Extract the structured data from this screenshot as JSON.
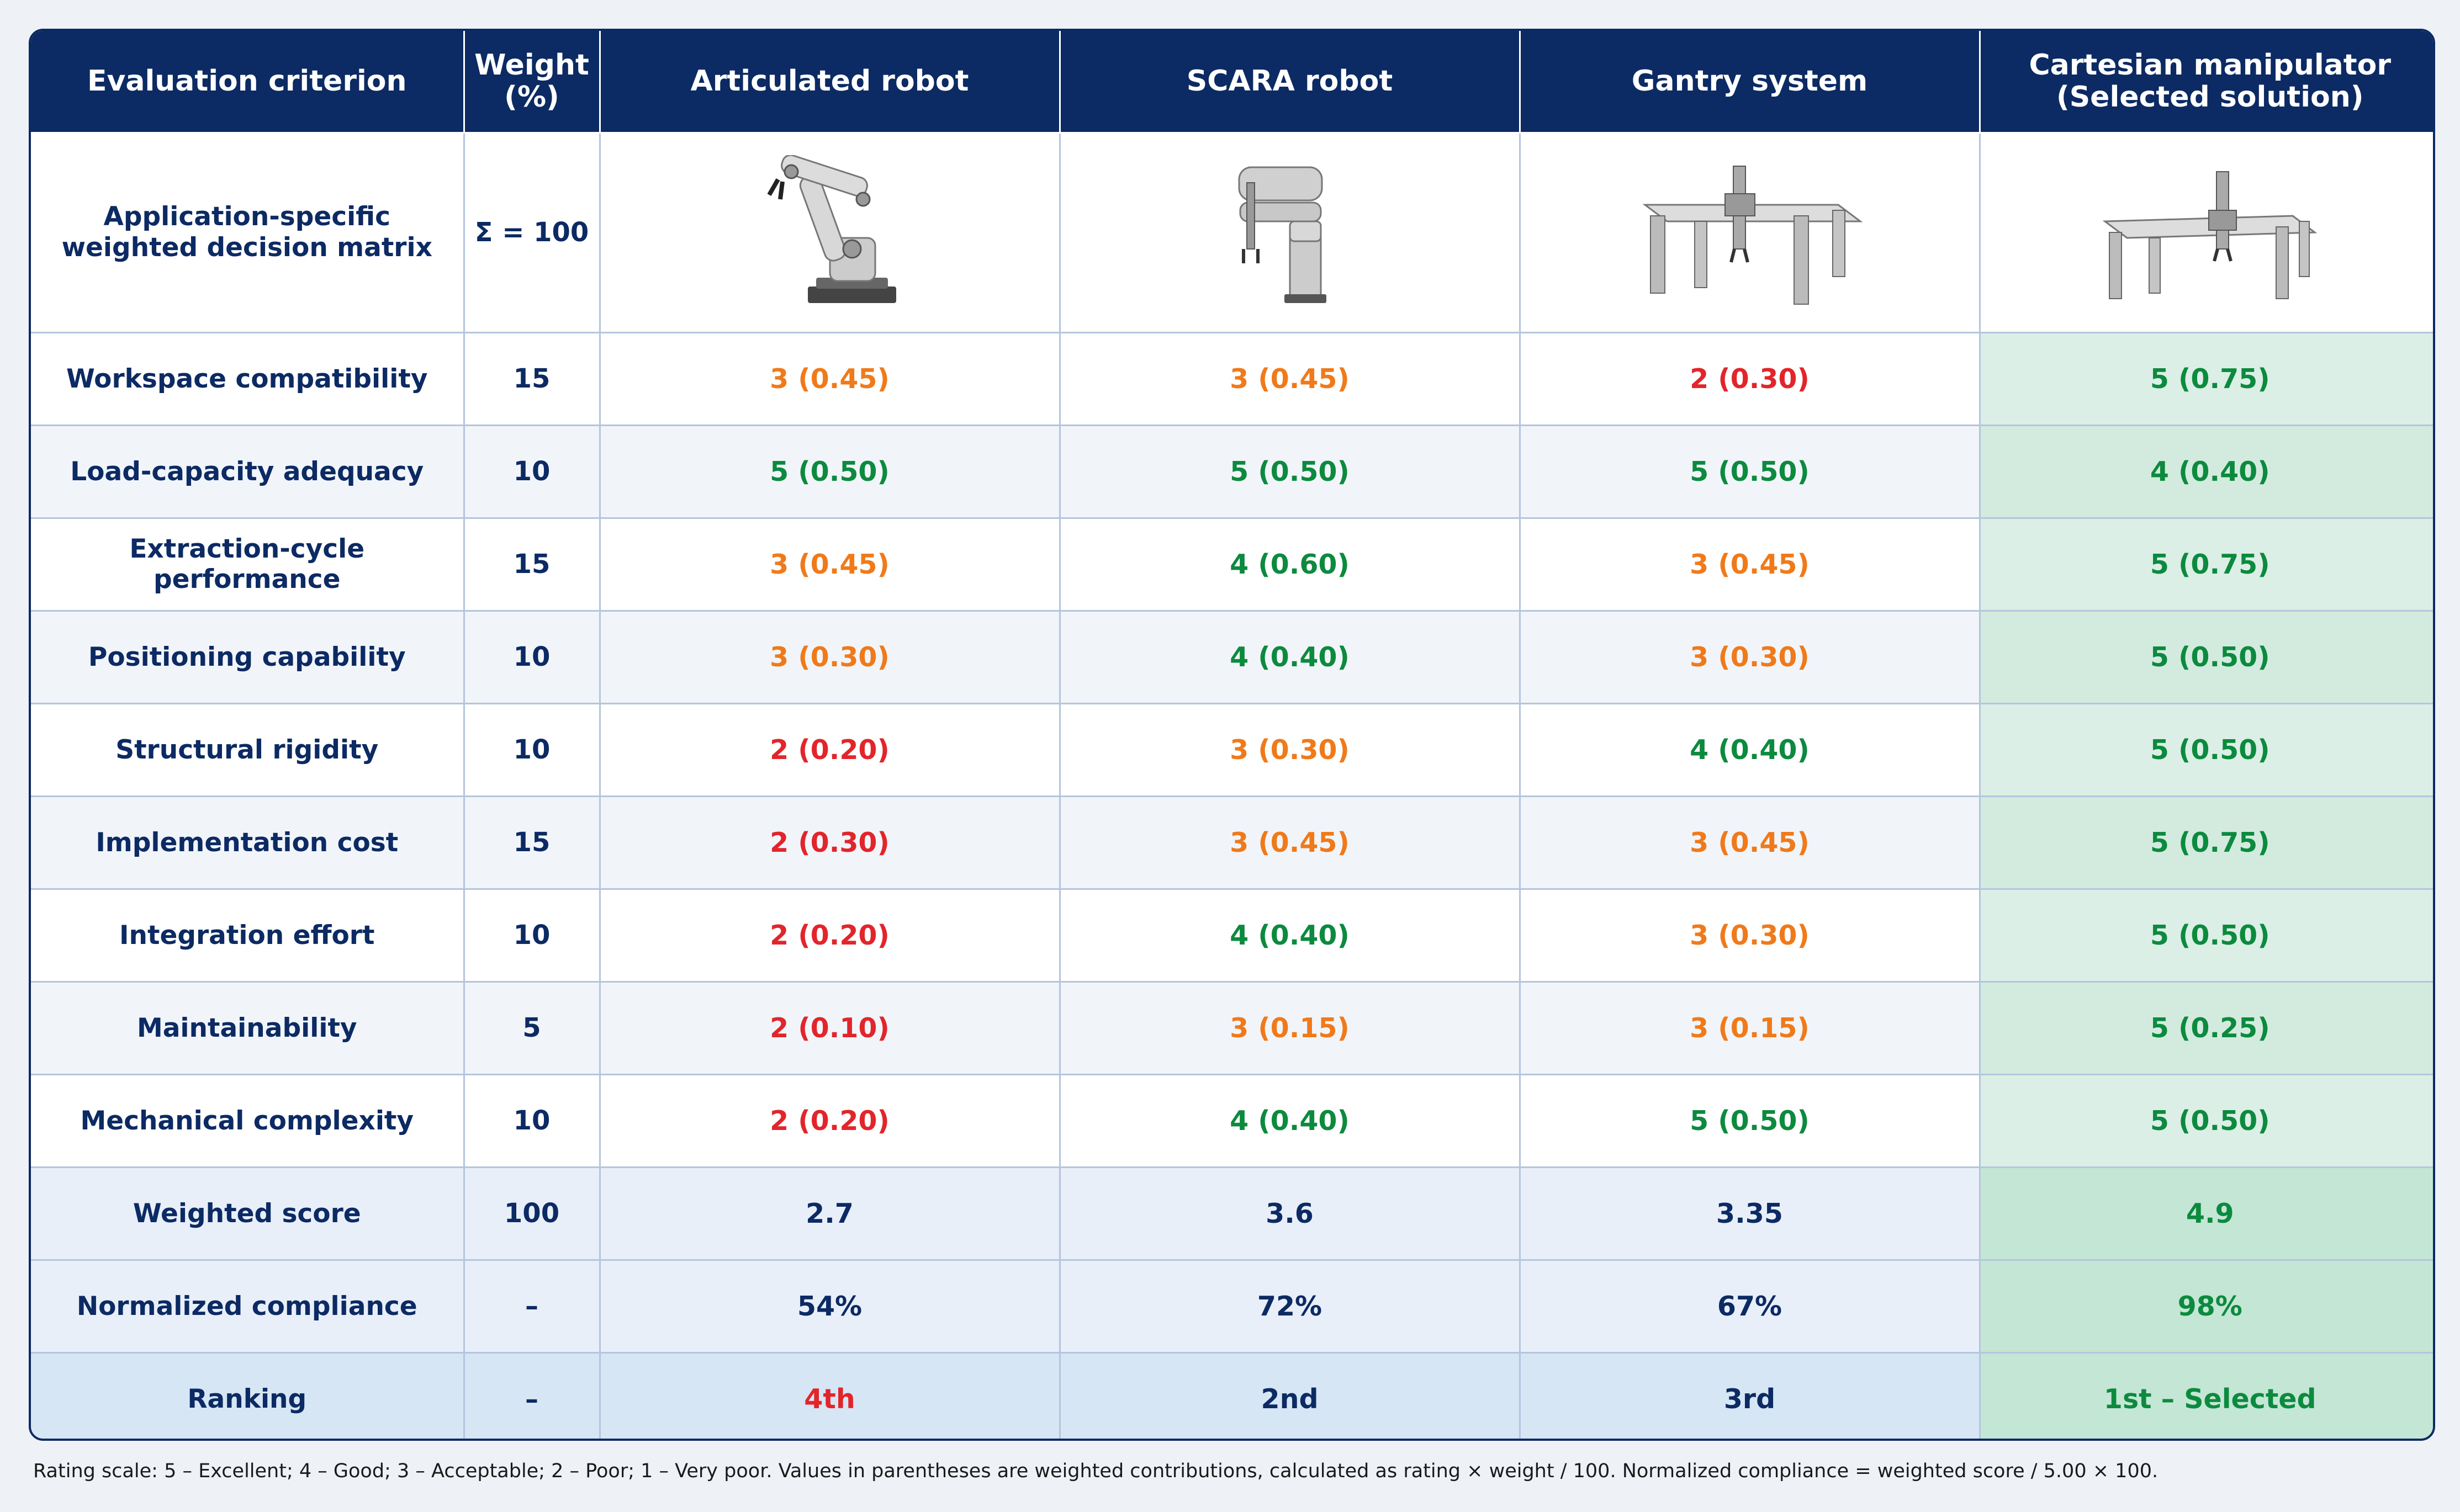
{
  "header": {
    "criterion": "Evaluation criterion",
    "weight_line1": "Weight",
    "weight_line2": "(%)",
    "col1": "Articulated robot",
    "col2": "SCARA robot",
    "col3": "Gantry system",
    "col4_line1": "Cartesian manipulator",
    "col4_line2": "(Selected solution)"
  },
  "image_row": {
    "label_line1": "Application-specific",
    "label_line2": "weighted decision matrix",
    "weight": "Σ = 100",
    "icons": [
      "articulated-robot-icon",
      "scara-robot-icon",
      "gantry-system-icon",
      "cartesian-manipulator-icon"
    ]
  },
  "colors": {
    "good": "#0c8a3e",
    "acceptable": "#f07a1a",
    "poor": "#e2252b",
    "navy": "#0c2a63"
  },
  "rows": [
    {
      "criterion": "Workspace compatibility",
      "weight": "15",
      "c1": "3 (0.45)",
      "c2": "3 (0.45)",
      "c3": "2 (0.30)",
      "c4": "5 (0.75)"
    },
    {
      "criterion": "Load-capacity adequacy",
      "weight": "10",
      "c1": "5 (0.50)",
      "c2": "5 (0.50)",
      "c3": "5 (0.50)",
      "c4": "4 (0.40)"
    },
    {
      "criterion": "Extraction-cycle performance",
      "weight": "15",
      "c1": "3 (0.45)",
      "c2": "4 (0.60)",
      "c3": "3 (0.45)",
      "c4": "5 (0.75)"
    },
    {
      "criterion": "Positioning capability",
      "weight": "10",
      "c1": "3 (0.30)",
      "c2": "4 (0.40)",
      "c3": "3 (0.30)",
      "c4": "5 (0.50)"
    },
    {
      "criterion": "Structural rigidity",
      "weight": "10",
      "c1": "2 (0.20)",
      "c2": "3 (0.30)",
      "c3": "4 (0.40)",
      "c4": "5 (0.50)"
    },
    {
      "criterion": "Implementation cost",
      "weight": "15",
      "c1": "2 (0.30)",
      "c2": "3 (0.45)",
      "c3": "3 (0.45)",
      "c4": "5 (0.75)"
    },
    {
      "criterion": "Integration effort",
      "weight": "10",
      "c1": "2 (0.20)",
      "c2": "4 (0.40)",
      "c3": "3 (0.30)",
      "c4": "5 (0.50)"
    },
    {
      "criterion": "Maintainability",
      "weight": "5",
      "c1": "2 (0.10)",
      "c2": "3 (0.15)",
      "c3": "3 (0.15)",
      "c4": "5 (0.25)"
    },
    {
      "criterion": "Mechanical complexity",
      "weight": "10",
      "c1": "2 (0.20)",
      "c2": "4 (0.40)",
      "c3": "5 (0.50)",
      "c4": "5 (0.50)"
    }
  ],
  "weighted_score": {
    "label": "Weighted score",
    "weight": "100",
    "c1": "2.7",
    "c2": "3.6",
    "c3": "3.35",
    "c4": "4.9"
  },
  "normalized": {
    "label": "Normalized compliance",
    "weight": "–",
    "c1": "54%",
    "c2": "72%",
    "c3": "67%",
    "c4": "98%"
  },
  "ranking": {
    "label": "Ranking",
    "weight": "–",
    "c1": "4th",
    "c2": "2nd",
    "c3": "3rd",
    "c4": "1st – Selected"
  },
  "footnote": "Rating scale: 5 – Excellent; 4 – Good; 3 – Acceptable; 2 – Poor; 1 – Very poor. Values in parentheses are weighted contributions, calculated as rating × weight / 100. Normalized compliance = weighted score / 5.00 × 100."
}
